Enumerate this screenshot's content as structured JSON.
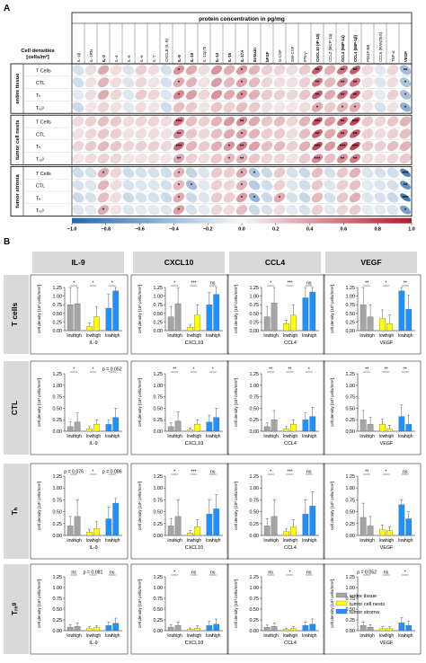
{
  "panel_labels": {
    "a": "A",
    "b": "B"
  },
  "heatmap": {
    "header_title": "protein concentration in pg/mg",
    "corner_label_1": "Cell densities",
    "corner_label_2": "[cells/m²]",
    "cytokines": [
      "IL-1β",
      "IL-1RN",
      "IL-2",
      "IL-4",
      "IL-5",
      "IL-6",
      "IL-7",
      "CXCL8 (IL-8)",
      "IL-9",
      "IL-10",
      "IL-12p70",
      "IL-13",
      "IL-15",
      "IL-17A",
      "Eotaxin",
      "bFGF",
      "G-CSF",
      "GM-CSF",
      "IFN-γ",
      "CXCL10 (IP-10)",
      "CCL2 (MCP-1a)",
      "CCL3 (MIP-1a)",
      "CCL4 (MIP-1β)",
      "PDGF BB",
      "CCL5 (RANTES)",
      "TNF-α",
      "VEGF"
    ],
    "bold_cytokines": [
      2,
      8,
      9,
      11,
      12,
      13,
      14,
      15,
      19,
      21,
      22,
      26
    ],
    "groups": [
      {
        "name": "entire tissue",
        "rows": [
          "T Cells",
          "CTL",
          "Tₕ",
          "Tᵣₑᵍ"
        ]
      },
      {
        "name": "tumor cell nests",
        "rows": [
          "T Cells",
          "CTL",
          "Tₕ",
          "Tᵣₑᵍ"
        ]
      },
      {
        "name": "tumor stroma",
        "rows": [
          "T Cells",
          "CTL",
          "Tₕ",
          "Tᵣₑᵍ"
        ]
      }
    ],
    "colorbar_ticks": [
      "−1.0",
      "−0.8",
      "−0.6",
      "−0.4",
      "−0.2",
      "0.0",
      "0.2",
      "0.4",
      "0.6",
      "0.8",
      "1.0"
    ],
    "colorbar_colors": {
      "neg": "#2166ac",
      "mid": "#f7f7f7",
      "pos": "#b2182b"
    }
  },
  "chart_data": {
    "type": "heatmap",
    "correlations": [
      [
        -0.15,
        0.12,
        0.35,
        0.12,
        -0.12,
        0.18,
        0.12,
        -0.15,
        0.45,
        0.35,
        0.12,
        0.45,
        0.32,
        0.42,
        0.3,
        0.18,
        0.15,
        0.12,
        0.2,
        0.7,
        0.32,
        0.6,
        0.7,
        0.12,
        -0.1,
        0.15,
        -0.4
      ],
      [
        -0.18,
        0.1,
        0.3,
        0.12,
        -0.12,
        0.15,
        0.1,
        -0.15,
        0.35,
        0.3,
        0.1,
        0.4,
        0.28,
        0.38,
        0.28,
        0.15,
        0.12,
        0.1,
        0.18,
        0.6,
        0.28,
        0.5,
        0.6,
        0.1,
        -0.12,
        0.12,
        -0.35
      ],
      [
        -0.1,
        0.12,
        0.35,
        0.15,
        -0.12,
        0.2,
        0.15,
        -0.12,
        0.5,
        0.4,
        0.15,
        0.45,
        0.35,
        0.45,
        0.32,
        0.2,
        0.18,
        0.15,
        0.22,
        0.7,
        0.35,
        0.62,
        0.72,
        0.15,
        -0.08,
        0.18,
        -0.38
      ],
      [
        -0.2,
        0.08,
        0.15,
        0.1,
        -0.1,
        0.12,
        0.08,
        -0.18,
        0.25,
        0.2,
        0.08,
        0.22,
        0.18,
        0.25,
        0.2,
        0.1,
        0.08,
        0.08,
        0.12,
        0.35,
        0.2,
        0.3,
        0.35,
        0.08,
        -0.15,
        0.1,
        -0.5
      ],
      [
        0.12,
        0.18,
        0.25,
        0.2,
        0.12,
        0.15,
        0.15,
        0.12,
        0.6,
        0.25,
        0.18,
        0.3,
        0.42,
        0.5,
        0.35,
        0.22,
        0.25,
        0.15,
        0.3,
        0.75,
        0.4,
        0.65,
        0.8,
        0.2,
        0.15,
        0.22,
        0.3
      ],
      [
        0.1,
        0.15,
        0.22,
        0.18,
        0.1,
        0.12,
        0.12,
        0.1,
        0.5,
        0.22,
        0.15,
        0.25,
        0.35,
        0.4,
        0.3,
        0.2,
        0.2,
        0.12,
        0.25,
        0.68,
        0.35,
        0.58,
        0.72,
        0.18,
        0.12,
        0.18,
        0.25
      ],
      [
        0.15,
        0.2,
        0.28,
        0.22,
        0.15,
        0.18,
        0.18,
        0.15,
        0.65,
        0.3,
        0.2,
        0.32,
        0.45,
        0.55,
        0.38,
        0.25,
        0.28,
        0.18,
        0.32,
        0.78,
        0.42,
        0.68,
        0.82,
        0.22,
        0.18,
        0.25,
        0.3
      ],
      [
        0.08,
        0.12,
        0.18,
        0.15,
        0.08,
        0.1,
        0.1,
        0.08,
        0.35,
        0.18,
        0.12,
        0.2,
        0.28,
        0.3,
        0.22,
        0.15,
        0.15,
        0.1,
        0.2,
        0.5,
        0.25,
        0.45,
        0.55,
        0.12,
        0.1,
        0.15,
        0.2
      ],
      [
        -0.18,
        -0.15,
        0.35,
        0.15,
        -0.18,
        -0.15,
        -0.15,
        -0.18,
        0.3,
        -0.25,
        -0.12,
        0.2,
        0.18,
        0.35,
        -0.35,
        -0.2,
        0.2,
        -0.15,
        -0.2,
        0.25,
        -0.15,
        0.2,
        0.3,
        -0.12,
        -0.15,
        -0.18,
        -0.8
      ],
      [
        -0.15,
        -0.12,
        0.3,
        0.12,
        -0.15,
        -0.12,
        -0.12,
        -0.15,
        0.28,
        -0.4,
        -0.1,
        0.18,
        0.15,
        0.3,
        -0.3,
        -0.18,
        0.18,
        -0.12,
        -0.18,
        0.22,
        -0.12,
        0.18,
        0.25,
        -0.1,
        -0.12,
        -0.15,
        -0.7
      ],
      [
        -0.2,
        -0.15,
        0.25,
        0.12,
        -0.2,
        -0.15,
        -0.15,
        -0.2,
        0.35,
        -0.2,
        -0.12,
        0.2,
        0.18,
        0.4,
        -0.45,
        -0.2,
        0.35,
        -0.15,
        -0.22,
        0.28,
        -0.15,
        0.22,
        0.32,
        -0.12,
        -0.15,
        -0.2,
        -0.85
      ],
      [
        -0.12,
        -0.1,
        0.35,
        0.1,
        -0.12,
        -0.1,
        -0.1,
        -0.12,
        0.4,
        -0.15,
        -0.08,
        0.15,
        0.12,
        0.25,
        -0.2,
        -0.15,
        0.12,
        -0.1,
        -0.15,
        0.18,
        -0.1,
        0.15,
        0.2,
        -0.08,
        -0.1,
        -0.12,
        -0.6
      ]
    ],
    "significance": [
      [
        "",
        "",
        "",
        "",
        "",
        "",
        "",
        "",
        "*",
        "",
        "",
        "",
        "",
        "*",
        "",
        "",
        "",
        "",
        "",
        "**",
        "",
        "**",
        "**",
        "",
        "",
        "",
        "**"
      ],
      [
        "",
        "",
        "",
        "",
        "",
        "",
        "",
        "",
        "*",
        "",
        "",
        "",
        "",
        "*",
        "",
        "",
        "",
        "",
        "",
        "**",
        "",
        "**",
        "**",
        "",
        "",
        "",
        "*"
      ],
      [
        "",
        "",
        "",
        "",
        "",
        "",
        "",
        "",
        "*",
        "",
        "",
        "",
        "",
        "*",
        "",
        "",
        "",
        "",
        "",
        "**",
        "",
        "**",
        "**",
        "",
        "",
        "",
        "*"
      ],
      [
        "",
        "",
        "",
        "",
        "",
        "",
        "",
        "",
        "",
        "",
        "",
        "",
        "",
        "",
        "",
        "",
        "",
        "",
        "",
        "*",
        "",
        "*",
        "*",
        "",
        "",
        "",
        "*"
      ],
      [
        "",
        "",
        "",
        "",
        "",
        "",
        "",
        "",
        "***",
        "",
        "",
        "",
        "",
        "**",
        "",
        "",
        "",
        "",
        "",
        "***",
        "",
        "**",
        "***",
        "",
        "",
        "",
        ""
      ],
      [
        "",
        "",
        "",
        "",
        "",
        "",
        "",
        "",
        "**",
        "",
        "",
        "",
        "",
        "*",
        "",
        "",
        "",
        "",
        "",
        "**",
        "",
        "**",
        "**",
        "",
        "",
        "",
        ""
      ],
      [
        "",
        "",
        "",
        "",
        "",
        "",
        "",
        "",
        "***",
        "",
        "",
        "",
        "*",
        "**",
        "",
        "",
        "",
        "",
        "",
        "***",
        "",
        "***",
        "***",
        "",
        "",
        "",
        ""
      ],
      [
        "",
        "",
        "",
        "",
        "",
        "",
        "",
        "",
        "**",
        "",
        "",
        "",
        "*",
        "**",
        "",
        "",
        "",
        "",
        "",
        "***",
        "",
        "**",
        "**",
        "",
        "",
        "",
        ""
      ],
      [
        "",
        "",
        "*",
        "",
        "",
        "",
        "",
        "",
        "*",
        "",
        "",
        "",
        "",
        "*",
        "*",
        "",
        "",
        "",
        "",
        "",
        "",
        "",
        "",
        "",
        "",
        "",
        "***"
      ],
      [
        "",
        "",
        "",
        "",
        "",
        "",
        "",
        "",
        "*",
        "*",
        "",
        "",
        "",
        "*",
        "",
        "",
        "",
        "",
        "",
        "",
        "",
        "",
        "",
        "",
        "",
        "",
        "**"
      ],
      [
        "",
        "",
        "",
        "",
        "",
        "",
        "",
        "",
        "*",
        "",
        "",
        "",
        "",
        "*",
        "*",
        "",
        "*",
        "",
        "",
        "",
        "",
        "",
        "",
        "",
        "",
        "",
        "***"
      ],
      [
        "",
        "",
        "*",
        "",
        "",
        "",
        "",
        "",
        "*",
        "",
        "",
        "",
        "",
        "",
        "",
        "",
        "",
        "",
        "",
        "",
        "",
        "",
        "",
        "",
        "",
        "",
        "*"
      ]
    ],
    "bars": {
      "rows": [
        "T cells",
        "CTL",
        "Tₕ",
        "Tᵣₑᵍ"
      ],
      "cols": [
        "IL-9",
        "CXCL10",
        "CCL4",
        "VEGF"
      ],
      "series": [
        {
          "name": "entire tissue",
          "color": "#a5a5a5"
        },
        {
          "name": "tumor cell nests",
          "color": "#ffff00"
        },
        {
          "name": "tumor stroma",
          "color": "#1e90ff"
        }
      ],
      "ylabel_prefix": "cell density [10³ cells/mm²]",
      "yticks": [
        "0.00",
        "0.25",
        "0.50",
        "0.75",
        "1.00",
        "1.25"
      ],
      "xcats": [
        "low",
        "high"
      ],
      "values": [
        [
          [
            0.75,
            0.78,
            0.12,
            0.4,
            0.65,
            1.15
          ],
          [
            0.4,
            0.78,
            0.1,
            0.45,
            0.75,
            1.05
          ],
          [
            0.4,
            0.8,
            0.2,
            0.45,
            0.95,
            1.12
          ],
          [
            0.75,
            0.4,
            0.35,
            0.2,
            1.15,
            0.62
          ]
        ],
        [
          [
            0.1,
            0.2,
            0.05,
            0.15,
            0.15,
            0.3
          ],
          [
            0.1,
            0.22,
            0.03,
            0.15,
            0.2,
            0.3
          ],
          [
            0.1,
            0.25,
            0.05,
            0.15,
            0.25,
            0.32
          ],
          [
            0.25,
            0.15,
            0.15,
            0.05,
            0.32,
            0.15
          ]
        ],
        [
          [
            0.2,
            0.4,
            0.07,
            0.15,
            0.35,
            0.68
          ],
          [
            0.2,
            0.4,
            0.05,
            0.18,
            0.45,
            0.56
          ],
          [
            0.2,
            0.4,
            0.08,
            0.18,
            0.45,
            0.62
          ],
          [
            0.38,
            0.2,
            0.12,
            0.1,
            0.65,
            0.35
          ]
        ],
        [
          [
            0.08,
            0.1,
            0.05,
            0.07,
            0.12,
            0.17
          ],
          [
            0.08,
            0.12,
            0.03,
            0.06,
            0.12,
            0.15
          ],
          [
            0.08,
            0.1,
            0.03,
            0.05,
            0.12,
            0.15
          ],
          [
            0.12,
            0.08,
            0.05,
            0.05,
            0.18,
            0.12
          ]
        ]
      ],
      "errors": [
        [
          [
            0.5,
            0.55,
            0.1,
            0.3,
            0.4,
            0.55
          ],
          [
            0.3,
            0.45,
            0.06,
            0.3,
            0.35,
            0.5
          ],
          [
            0.3,
            0.5,
            0.1,
            0.3,
            0.45,
            0.55
          ],
          [
            0.5,
            0.35,
            0.25,
            0.25,
            0.5,
            0.4
          ]
        ],
        [
          [
            0.1,
            0.2,
            0.05,
            0.1,
            0.1,
            0.2
          ],
          [
            0.08,
            0.2,
            0.04,
            0.1,
            0.15,
            0.2
          ],
          [
            0.08,
            0.2,
            0.05,
            0.1,
            0.15,
            0.2
          ],
          [
            0.2,
            0.15,
            0.12,
            0.08,
            0.25,
            0.2
          ]
        ],
        [
          [
            0.2,
            0.35,
            0.06,
            0.15,
            0.25,
            0.1
          ],
          [
            0.15,
            0.35,
            0.05,
            0.15,
            0.3,
            0.3
          ],
          [
            0.15,
            0.35,
            0.06,
            0.15,
            0.3,
            0.3
          ],
          [
            0.3,
            0.2,
            0.1,
            0.08,
            0.1,
            0.15
          ]
        ],
        [
          [
            0.06,
            0.08,
            0.04,
            0.05,
            0.08,
            0.12
          ],
          [
            0.06,
            0.08,
            0.03,
            0.05,
            0.1,
            0.12
          ],
          [
            0.05,
            0.08,
            0.03,
            0.04,
            0.08,
            0.12
          ],
          [
            0.08,
            0.06,
            0.04,
            0.04,
            0.12,
            0.1
          ]
        ]
      ],
      "sig": [
        [
          [
            "*",
            "*",
            "*"
          ],
          [
            "*",
            "***",
            "ns"
          ],
          [
            "*",
            "***",
            "ns"
          ],
          [
            "**",
            "*",
            "**"
          ]
        ],
        [
          [
            "*",
            "*",
            "p = 0.052"
          ],
          [
            "**",
            "*",
            "*"
          ],
          [
            "**",
            "**",
            "*"
          ],
          [
            "**",
            "**",
            "**"
          ]
        ],
        [
          [
            "p = 0.076",
            "*",
            "p = 0.086"
          ],
          [
            "*",
            "***",
            "ns"
          ],
          [
            "*",
            "***",
            "ns"
          ],
          [
            "**",
            "*",
            "ns"
          ]
        ],
        [
          [
            "ns",
            "p = 0.081",
            "ns"
          ],
          [
            "*",
            "ns",
            "ns"
          ],
          [
            "ns",
            "*",
            "ns"
          ],
          [
            "p = 0.052",
            "ns",
            "*"
          ]
        ]
      ]
    }
  },
  "legend": {
    "entries": [
      "entire tissue",
      "tumor cell nests",
      "tumor stroma"
    ]
  }
}
